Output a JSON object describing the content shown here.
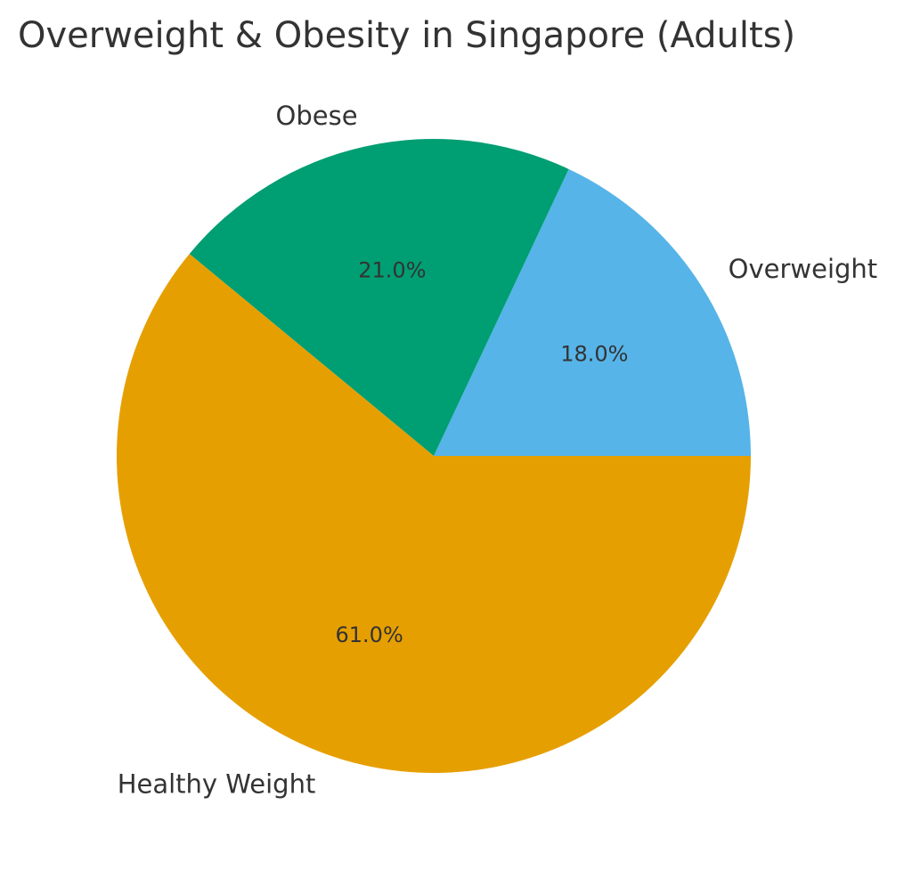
{
  "chart_data": {
    "type": "pie",
    "title": "Overweight & Obesity in Singapore (Adults)",
    "categories": [
      "Overweight",
      "Obese",
      "Healthy Weight"
    ],
    "values": [
      18.0,
      21.0,
      61.0
    ],
    "labels_pct": [
      "18.0%",
      "21.0%",
      "61.0%"
    ],
    "colors": [
      "#56B4E9",
      "#009E73",
      "#E69F00"
    ],
    "start_angle": 0,
    "direction": "counterclockwise",
    "legend": "none"
  }
}
